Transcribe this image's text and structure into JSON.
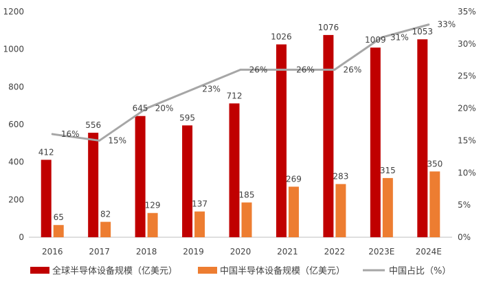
{
  "chart_data": {
    "type": "bar",
    "categories": [
      "2016",
      "2017",
      "2018",
      "2019",
      "2020",
      "2021",
      "2022",
      "2023E",
      "2024E"
    ],
    "series": [
      {
        "name": "全球半导体设备规模（亿美元）",
        "type": "bar",
        "axis": "left",
        "color": "#c00000",
        "values": [
          412,
          556,
          645,
          595,
          712,
          1026,
          1076,
          1009,
          1053
        ]
      },
      {
        "name": "中国半导体设备规模（亿美元）",
        "type": "bar",
        "axis": "left",
        "color": "#ed7d31",
        "values": [
          65,
          82,
          129,
          137,
          185,
          269,
          283,
          315,
          350
        ]
      },
      {
        "name": "中国占比（%）",
        "type": "line",
        "axis": "right",
        "color": "#a6a6a6",
        "values": [
          16,
          15,
          20,
          23,
          26,
          26,
          26,
          31,
          33
        ],
        "labels": [
          "16%",
          "15%",
          "20%",
          "23%",
          "26%",
          "26%",
          "26%",
          "31%",
          "33%"
        ]
      }
    ],
    "y_left": {
      "ylim": [
        0,
        1200
      ],
      "ticks": [
        0,
        200,
        400,
        600,
        800,
        1000,
        1200
      ]
    },
    "y_right": {
      "ylim": [
        0,
        35
      ],
      "ticks": [
        "0%",
        "5%",
        "10%",
        "15%",
        "20%",
        "25%",
        "30%",
        "35%"
      ]
    },
    "legend_position": "bottom",
    "grid": false
  }
}
